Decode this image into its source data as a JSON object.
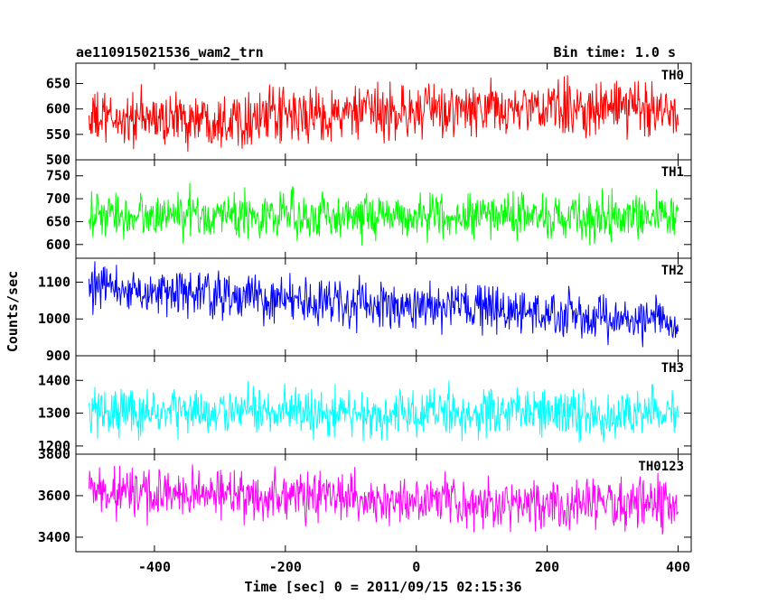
{
  "header": {
    "left_title": "ae110915021536_wam2_trn",
    "right_title": "Bin time: 1.0 s"
  },
  "chart_data": {
    "type": "line",
    "title": "ae110915021536_wam2_trn",
    "subtitle": "Bin time: 1.0 s",
    "xlabel": "Time [sec] 0 = 2011/09/15 02:15:36",
    "ylabel": "Counts/sec",
    "xlim": [
      -520,
      420
    ],
    "x_range_data": [
      -500,
      400
    ],
    "bin_time_s": 1.0,
    "x_ticks": [
      "-400",
      "-200",
      "0",
      "200",
      "400"
    ],
    "grid": false,
    "panels": [
      {
        "name": "TH0",
        "color": "#ff0000",
        "ylim": [
          500,
          690
        ],
        "y_ticks": [
          "500",
          "550",
          "600",
          "650"
        ],
        "trend": [
          [
            -500,
            578
          ],
          [
            -200,
            585
          ],
          [
            0,
            595
          ],
          [
            200,
            600
          ],
          [
            400,
            603
          ]
        ],
        "noise_sigma": 28
      },
      {
        "name": "TH1",
        "color": "#00ff00",
        "ylim": [
          570,
          785
        ],
        "y_ticks": [
          "600",
          "650",
          "700",
          "750"
        ],
        "trend": [
          [
            -500,
            662
          ],
          [
            -200,
            665
          ],
          [
            0,
            662
          ],
          [
            200,
            662
          ],
          [
            400,
            660
          ]
        ],
        "noise_sigma": 26
      },
      {
        "name": "TH2",
        "color": "#0000ff",
        "ylim": [
          900,
          1165
        ],
        "y_ticks": [
          "900",
          "1000",
          "1100"
        ],
        "trend": [
          [
            -500,
            1085
          ],
          [
            -300,
            1065
          ],
          [
            -100,
            1040
          ],
          [
            100,
            1025
          ],
          [
            300,
            1000
          ],
          [
            400,
            995
          ]
        ],
        "noise_sigma": 32
      },
      {
        "name": "TH3",
        "color": "#00ffff",
        "ylim": [
          1175,
          1475
        ],
        "y_ticks": [
          "1200",
          "1300",
          "1400"
        ],
        "trend": [
          [
            -500,
            1305
          ],
          [
            -200,
            1302
          ],
          [
            0,
            1300
          ],
          [
            200,
            1300
          ],
          [
            400,
            1298
          ]
        ],
        "noise_sigma": 38
      },
      {
        "name": "TH0123",
        "color": "#ff00ff",
        "ylim": [
          3330,
          3800
        ],
        "y_ticks": [
          "3400",
          "3600",
          "3800"
        ],
        "trend": [
          [
            -500,
            3620
          ],
          [
            -200,
            3600
          ],
          [
            0,
            3570
          ],
          [
            200,
            3560
          ],
          [
            400,
            3555
          ]
        ],
        "noise_sigma": 62
      }
    ]
  }
}
